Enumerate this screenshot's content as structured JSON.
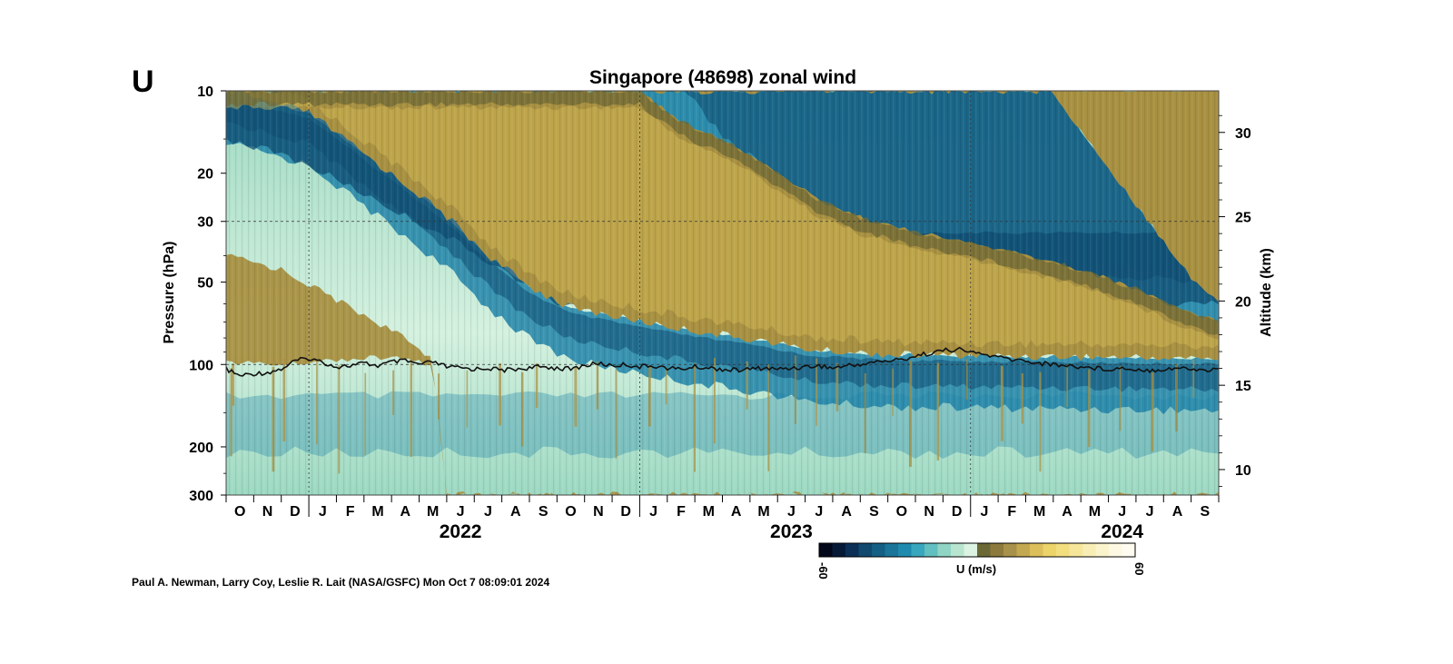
{
  "panel_letter": "U",
  "credit": "Paul A. Newman, Larry Coy, Leslie R. Lait (NASA/GSFC) Mon Oct  7 08:09:01 2024",
  "chart_data": {
    "type": "heatmap",
    "title": "Singapore (48698) zonal wind",
    "ylabel_left": "Pressure (hPa)",
    "ylabel_right": "Altitude (km)",
    "pressure_range_hPa": [
      300,
      10
    ],
    "pressure_ticks": [
      10,
      20,
      30,
      50,
      100,
      200,
      300
    ],
    "altitude_ticks_km": [
      30,
      25,
      20,
      15,
      10
    ],
    "month_ticks": [
      "O",
      "N",
      "D",
      "J",
      "F",
      "M",
      "A",
      "M",
      "J",
      "J",
      "A",
      "S",
      "O",
      "N",
      "D",
      "J",
      "F",
      "M",
      "A",
      "M",
      "J",
      "J",
      "A",
      "S",
      "O",
      "N",
      "D",
      "J",
      "F",
      "M",
      "A",
      "M",
      "J",
      "J",
      "A",
      "S"
    ],
    "year_labels": [
      {
        "label": "2022",
        "center_month_index": 8.5
      },
      {
        "label": "2023",
        "center_month_index": 20.5
      },
      {
        "label": "2024",
        "center_month_index": 32.5
      }
    ],
    "year_boundaries_month_index": [
      3,
      15,
      27
    ],
    "reference_lines_hPa": [
      30,
      100
    ],
    "time_range": [
      "2021-10",
      "2024-09"
    ],
    "qbo_easterly_phase": {
      "upper_boundary_hPa": [
        {
          "m": 0,
          "p": 10
        },
        {
          "m": 3,
          "p": 12
        },
        {
          "m": 5,
          "p": 17
        },
        {
          "m": 7,
          "p": 24
        },
        {
          "m": 8.2,
          "p": 30
        },
        {
          "m": 9.5,
          "p": 40
        },
        {
          "m": 11,
          "p": 52
        },
        {
          "m": 12.5,
          "p": 62
        },
        {
          "m": 14.5,
          "p": 68
        },
        {
          "m": 16.5,
          "p": 74
        },
        {
          "m": 18,
          "p": 78
        },
        {
          "m": 19.5,
          "p": 82
        },
        {
          "m": 21,
          "p": 88
        },
        {
          "m": 22.5,
          "p": 90
        },
        {
          "m": 24,
          "p": 92
        },
        {
          "m": 36,
          "p": 95
        }
      ],
      "lower_boundary_hPa": [
        {
          "m": 0,
          "p": 10
        },
        {
          "m": 15,
          "p": 10
        },
        {
          "m": 16.5,
          "p": 13
        },
        {
          "m": 18.5,
          "p": 16
        },
        {
          "m": 20,
          "p": 20
        },
        {
          "m": 21.5,
          "p": 25
        },
        {
          "m": 23,
          "p": 29
        },
        {
          "m": 25,
          "p": 33
        },
        {
          "m": 27,
          "p": 36
        },
        {
          "m": 29,
          "p": 40
        },
        {
          "m": 31,
          "p": 45
        },
        {
          "m": 33,
          "p": 53
        },
        {
          "m": 34.5,
          "p": 62
        },
        {
          "m": 36,
          "p": 70
        }
      ]
    },
    "qbo_westerly_phase": {
      "lower_boundary_hPa": [
        {
          "m": 0,
          "p": 10
        },
        {
          "m": 15,
          "p": 10
        },
        {
          "m": 16.5,
          "p": 16
        },
        {
          "m": 18,
          "p": 24
        },
        {
          "m": 19.5,
          "p": 32
        },
        {
          "m": 21,
          "p": 40
        },
        {
          "m": 22.5,
          "p": 48
        },
        {
          "m": 24,
          "p": 56
        },
        {
          "m": 25.5,
          "p": 63
        },
        {
          "m": 27,
          "p": 70
        },
        {
          "m": 28.5,
          "p": 75
        },
        {
          "m": 30,
          "p": 78
        },
        {
          "m": 31,
          "p": 80
        },
        {
          "m": 36,
          "p": 82
        }
      ],
      "upper_boundary_hPa": [
        {
          "m": 0,
          "p": 10
        },
        {
          "m": 30,
          "p": 10
        },
        {
          "m": 31,
          "p": 14
        },
        {
          "m": 32,
          "p": 19
        },
        {
          "m": 33,
          "p": 26
        },
        {
          "m": 34,
          "p": 35
        },
        {
          "m": 35,
          "p": 48
        },
        {
          "m": 36,
          "p": 60
        }
      ],
      "deep_core_hPa": [
        {
          "m": 0,
          "p": 15
        },
        {
          "m": 2,
          "p": 17
        },
        {
          "m": 4,
          "p": 21
        },
        {
          "m": 6,
          "p": 27
        },
        {
          "m": 8,
          "p": 34
        },
        {
          "m": 10,
          "p": 45
        },
        {
          "m": 12,
          "p": 60
        }
      ]
    },
    "tropopause_series_hPa": {
      "month_index": [
        0,
        0.5,
        1,
        1.5,
        2,
        2.5,
        3,
        3.5,
        4,
        4.5,
        5,
        5.5,
        6,
        6.5,
        7,
        7.5,
        8,
        8.5,
        9,
        9.5,
        10,
        10.5,
        11,
        11.5,
        12,
        12.5,
        13,
        13.5,
        14,
        14.5,
        15,
        15.5,
        16,
        16.5,
        17,
        17.5,
        18,
        18.5,
        19,
        19.5,
        20,
        20.5,
        21,
        21.5,
        22,
        22.5,
        23,
        23.5,
        24,
        24.5,
        25,
        25.5,
        26,
        26.5,
        27,
        27.5,
        28,
        28.5,
        29,
        29.5,
        30,
        30.5,
        31,
        31.5,
        32,
        32.5,
        33,
        33.5,
        34,
        34.5,
        35,
        35.5,
        36
      ],
      "pressure": [
        104,
        110,
        108,
        107,
        104,
        97,
        95,
        98,
        102,
        101,
        99,
        101,
        98,
        97,
        100,
        98,
        102,
        103,
        104,
        103,
        105,
        104,
        103,
        102,
        103,
        104,
        101,
        99,
        101,
        100,
        102,
        101,
        103,
        104,
        102,
        103,
        104,
        105,
        104,
        103,
        104,
        103,
        102,
        101,
        103,
        101,
        100,
        98,
        97,
        96,
        93,
        91,
        89,
        88,
        90,
        92,
        94,
        96,
        97,
        99,
        100,
        101,
        102,
        103,
        104,
        103,
        104,
        105,
        104,
        103,
        104,
        105,
        104
      ]
    },
    "colorbar": {
      "label": "U (m/s)",
      "min_label": "-60",
      "max_label": "60",
      "colors": [
        "#02071a",
        "#061a38",
        "#0c2f57",
        "#11496f",
        "#145f84",
        "#1a7599",
        "#1f8aad",
        "#38a6bd",
        "#62bfbf",
        "#8fd4c4",
        "#b8e5cf",
        "#dcf2e2",
        "#6b6835",
        "#8c7a3c",
        "#a8914a",
        "#c3a852",
        "#dcbf5c",
        "#ecd36a",
        "#f3de7e",
        "#f6e69a",
        "#f8edb4",
        "#faf3cc",
        "#fcf8e2",
        "#fefcf1"
      ]
    },
    "colors": {
      "easterly_mid": "#a89041",
      "easterly_dark": "#716a35",
      "easterly_light": "#d8bc56",
      "westerly_deep": "#0f4c72",
      "westerly_mid": "#1f83a8",
      "westerly_light": "#9cd9c2",
      "westerly_pale": "#d4f1df",
      "tropopause_line": "#111111"
    }
  }
}
